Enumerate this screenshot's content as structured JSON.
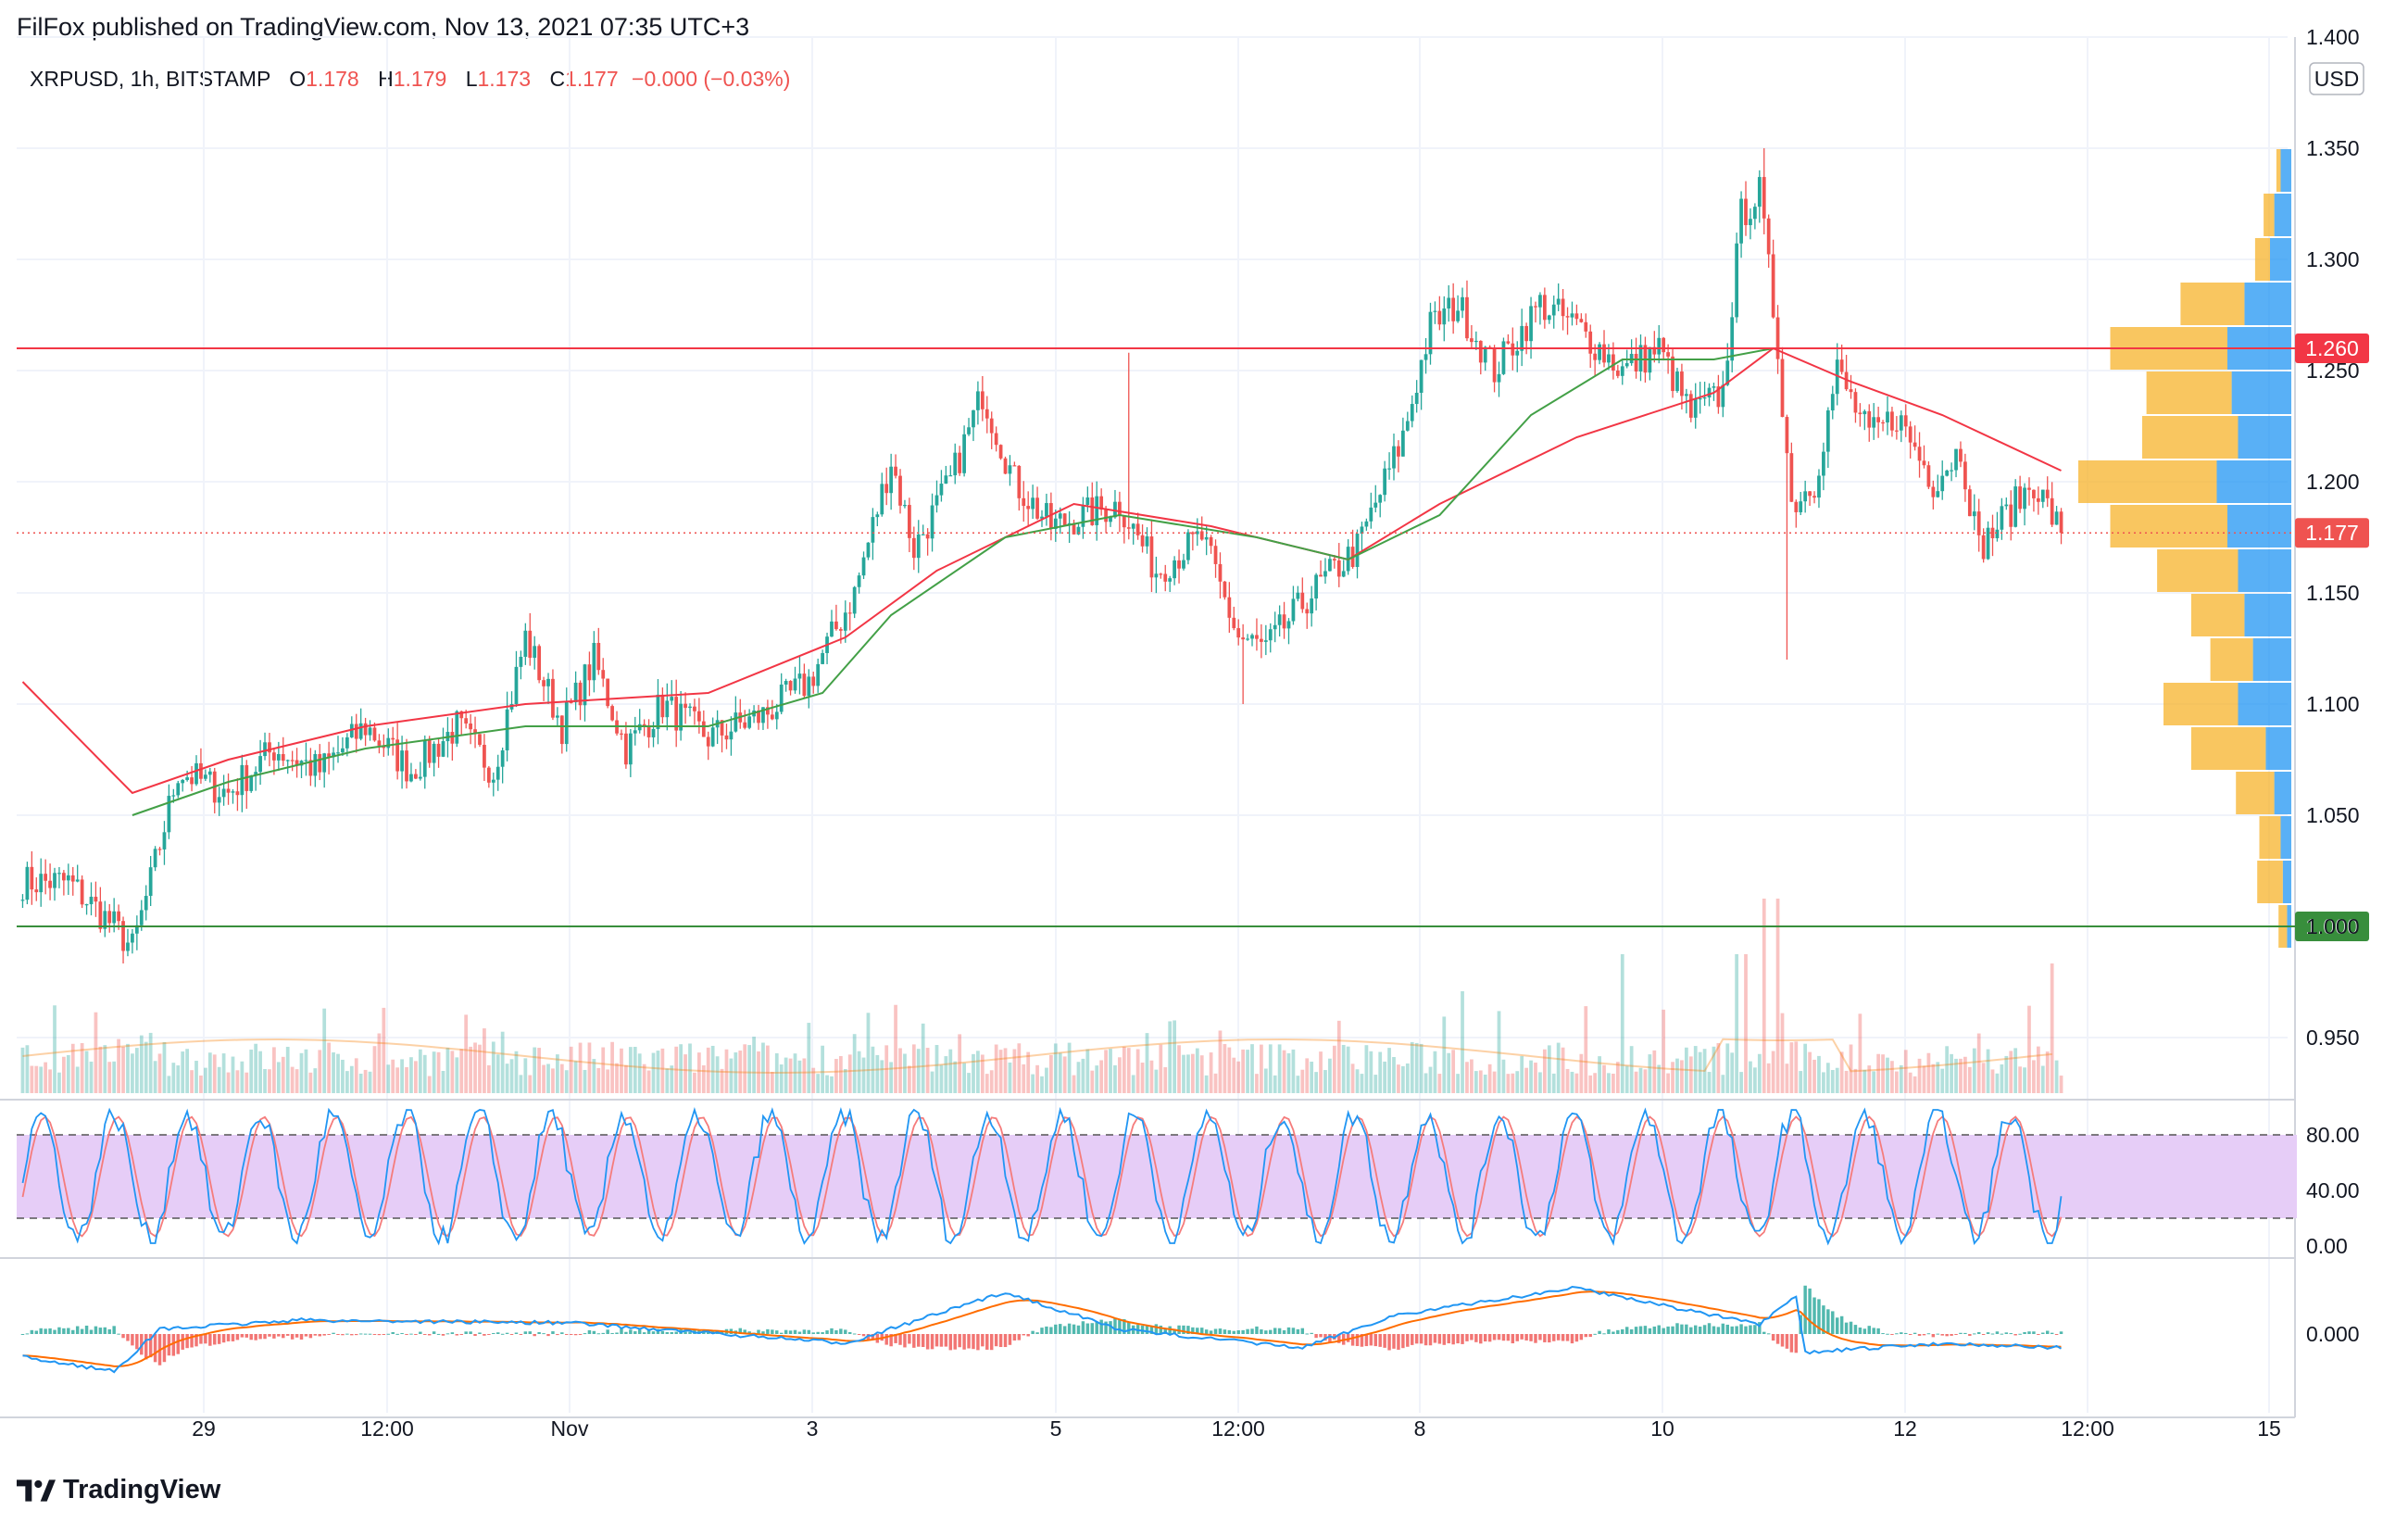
{
  "header": {
    "published": "FilFox published on TradingView.com, Nov 13, 2021 07:35 UTC+3"
  },
  "legend": {
    "symbol": "XRPUSD, 1h, BITSTAMP",
    "open_label": "O",
    "open": "1.178",
    "high_label": "H",
    "high": "1.179",
    "low_label": "L",
    "low": "1.173",
    "close_label": "C",
    "close": "1.177",
    "change": "−0.000 (−0.03%)"
  },
  "currency_badge": "USD",
  "brand": "TradingView",
  "colors": {
    "up": "#26a69a",
    "down": "#ef5350",
    "resistance": "#f23645",
    "support": "#388e3c",
    "ma_red": "#f23645",
    "ma_green": "#43a047",
    "stoch_band": "#e6cdf7",
    "stoch_k": "#2196f3",
    "stoch_d": "#f57c7c",
    "macd_line": "#2196f3",
    "signal_line": "#ff6d00",
    "vp_up": "#2196f3",
    "vp_down": "#f7b32b"
  },
  "chart_data": [
    {
      "type": "candlestick",
      "title": "XRPUSD, 1h, BITSTAMP",
      "x_ticks": [
        "29",
        "12:00",
        "Nov",
        "3",
        "5",
        "12:00",
        "8",
        "10",
        "12",
        "12:00",
        "15"
      ],
      "y_ticks": [
        "1.400",
        "1.350",
        "1.300",
        "1.250",
        "1.200",
        "1.150",
        "1.100",
        "1.050",
        "1.000",
        "0.950"
      ],
      "ylim": [
        0.925,
        1.4
      ],
      "horizontal_levels": [
        {
          "price": 1.26,
          "label": "1.260",
          "color": "#f23645"
        },
        {
          "price": 1.0,
          "label": "1.000",
          "color": "#388e3c"
        }
      ],
      "last_price": {
        "price": 1.177,
        "label": "1.177"
      },
      "price_waypoints": [
        {
          "i": 0,
          "p": 1.02
        },
        {
          "i": 10,
          "p": 1.02
        },
        {
          "i": 20,
          "p": 1.0
        },
        {
          "i": 24,
          "p": 0.99
        },
        {
          "i": 28,
          "p": 1.02
        },
        {
          "i": 34,
          "p": 1.07
        },
        {
          "i": 45,
          "p": 1.06
        },
        {
          "i": 55,
          "p": 1.08
        },
        {
          "i": 65,
          "p": 1.07
        },
        {
          "i": 75,
          "p": 1.09
        },
        {
          "i": 85,
          "p": 1.07
        },
        {
          "i": 95,
          "p": 1.09
        },
        {
          "i": 103,
          "p": 1.07
        },
        {
          "i": 110,
          "p": 1.13
        },
        {
          "i": 118,
          "p": 1.09
        },
        {
          "i": 125,
          "p": 1.12
        },
        {
          "i": 132,
          "p": 1.08
        },
        {
          "i": 140,
          "p": 1.1
        },
        {
          "i": 150,
          "p": 1.085
        },
        {
          "i": 162,
          "p": 1.095
        },
        {
          "i": 172,
          "p": 1.11
        },
        {
          "i": 182,
          "p": 1.15
        },
        {
          "i": 190,
          "p": 1.21
        },
        {
          "i": 195,
          "p": 1.17
        },
        {
          "i": 203,
          "p": 1.2
        },
        {
          "i": 210,
          "p": 1.24
        },
        {
          "i": 217,
          "p": 1.2
        },
        {
          "i": 225,
          "p": 1.18
        },
        {
          "i": 240,
          "p": 1.19
        },
        {
          "i": 248,
          "p": 1.16
        },
        {
          "i": 258,
          "p": 1.175
        },
        {
          "i": 266,
          "p": 1.13
        },
        {
          "i": 272,
          "p": 1.125
        },
        {
          "i": 282,
          "p": 1.15
        },
        {
          "i": 292,
          "p": 1.17
        },
        {
          "i": 302,
          "p": 1.22
        },
        {
          "i": 308,
          "p": 1.27
        },
        {
          "i": 314,
          "p": 1.28
        },
        {
          "i": 322,
          "p": 1.25
        },
        {
          "i": 332,
          "p": 1.28
        },
        {
          "i": 340,
          "p": 1.27
        },
        {
          "i": 350,
          "p": 1.25
        },
        {
          "i": 358,
          "p": 1.26
        },
        {
          "i": 365,
          "p": 1.23
        },
        {
          "i": 372,
          "p": 1.24
        },
        {
          "i": 376,
          "p": 1.32
        },
        {
          "i": 380,
          "p": 1.33
        },
        {
          "i": 384,
          "p": 1.26
        },
        {
          "i": 387,
          "p": 1.19
        },
        {
          "i": 392,
          "p": 1.2
        },
        {
          "i": 397,
          "p": 1.25
        },
        {
          "i": 404,
          "p": 1.22
        },
        {
          "i": 410,
          "p": 1.23
        },
        {
          "i": 418,
          "p": 1.2
        },
        {
          "i": 424,
          "p": 1.215
        },
        {
          "i": 428,
          "p": 1.17
        },
        {
          "i": 434,
          "p": 1.185
        },
        {
          "i": 440,
          "p": 1.2
        },
        {
          "i": 446,
          "p": 1.177
        }
      ],
      "candle_count": 447,
      "moving_averages": [
        {
          "name": "",
          "color": "#f23645",
          "points": [
            [
              0,
              1.11
            ],
            [
              24,
              1.06
            ],
            [
              45,
              1.075
            ],
            [
              75,
              1.09
            ],
            [
              110,
              1.1
            ],
            [
              150,
              1.105
            ],
            [
              180,
              1.13
            ],
            [
              200,
              1.16
            ],
            [
              230,
              1.19
            ],
            [
              260,
              1.18
            ],
            [
              290,
              1.165
            ],
            [
              310,
              1.19
            ],
            [
              340,
              1.22
            ],
            [
              370,
              1.24
            ],
            [
              383,
              1.26
            ],
            [
              400,
              1.245
            ],
            [
              420,
              1.23
            ],
            [
              446,
              1.205
            ]
          ]
        },
        {
          "name": "",
          "color": "#43a047",
          "points": [
            [
              24,
              1.05
            ],
            [
              45,
              1.065
            ],
            [
              75,
              1.08
            ],
            [
              110,
              1.09
            ],
            [
              150,
              1.09
            ],
            [
              175,
              1.105
            ],
            [
              190,
              1.14
            ],
            [
              215,
              1.175
            ],
            [
              240,
              1.185
            ],
            [
              270,
              1.175
            ],
            [
              290,
              1.165
            ],
            [
              310,
              1.185
            ],
            [
              330,
              1.23
            ],
            [
              350,
              1.255
            ],
            [
              370,
              1.255
            ],
            [
              383,
              1.26
            ]
          ]
        }
      ],
      "volume_profile_note": "",
      "volume_profile": [
        {
          "price": 1.34,
          "up": 0.05,
          "down": 0.02
        },
        {
          "price": 1.32,
          "up": 0.08,
          "down": 0.05
        },
        {
          "price": 1.3,
          "up": 0.1,
          "down": 0.07
        },
        {
          "price": 1.28,
          "up": 0.22,
          "down": 0.3
        },
        {
          "price": 1.26,
          "up": 0.3,
          "down": 0.55
        },
        {
          "price": 1.24,
          "up": 0.28,
          "down": 0.4
        },
        {
          "price": 1.22,
          "up": 0.25,
          "down": 0.45
        },
        {
          "price": 1.2,
          "up": 0.35,
          "down": 0.65
        },
        {
          "price": 1.18,
          "up": 0.3,
          "down": 0.55
        },
        {
          "price": 1.16,
          "up": 0.25,
          "down": 0.38
        },
        {
          "price": 1.14,
          "up": 0.22,
          "down": 0.25
        },
        {
          "price": 1.12,
          "up": 0.18,
          "down": 0.2
        },
        {
          "price": 1.1,
          "up": 0.25,
          "down": 0.35
        },
        {
          "price": 1.08,
          "up": 0.12,
          "down": 0.35
        },
        {
          "price": 1.06,
          "up": 0.08,
          "down": 0.18
        },
        {
          "price": 1.04,
          "up": 0.05,
          "down": 0.1
        },
        {
          "price": 1.02,
          "up": 0.04,
          "down": 0.12
        },
        {
          "price": 1.0,
          "up": 0.02,
          "down": 0.04
        }
      ]
    },
    {
      "type": "line",
      "title": "",
      "y_ticks": [
        "80.00",
        "40.00",
        "0.00"
      ],
      "ylim": [
        0,
        100
      ],
      "band": [
        20,
        80
      ],
      "series": [
        {
          "name": "",
          "color": "#2196f3"
        },
        {
          "name": "",
          "color": "#f57c7c"
        }
      ],
      "oscillation_cycles": 28
    },
    {
      "type": "line",
      "title": "",
      "y_ticks": [
        "0.000"
      ],
      "series": [
        {
          "name": "",
          "color": "#2196f3"
        },
        {
          "name": "",
          "color": "#ff6d00"
        }
      ],
      "histogram": true
    }
  ]
}
